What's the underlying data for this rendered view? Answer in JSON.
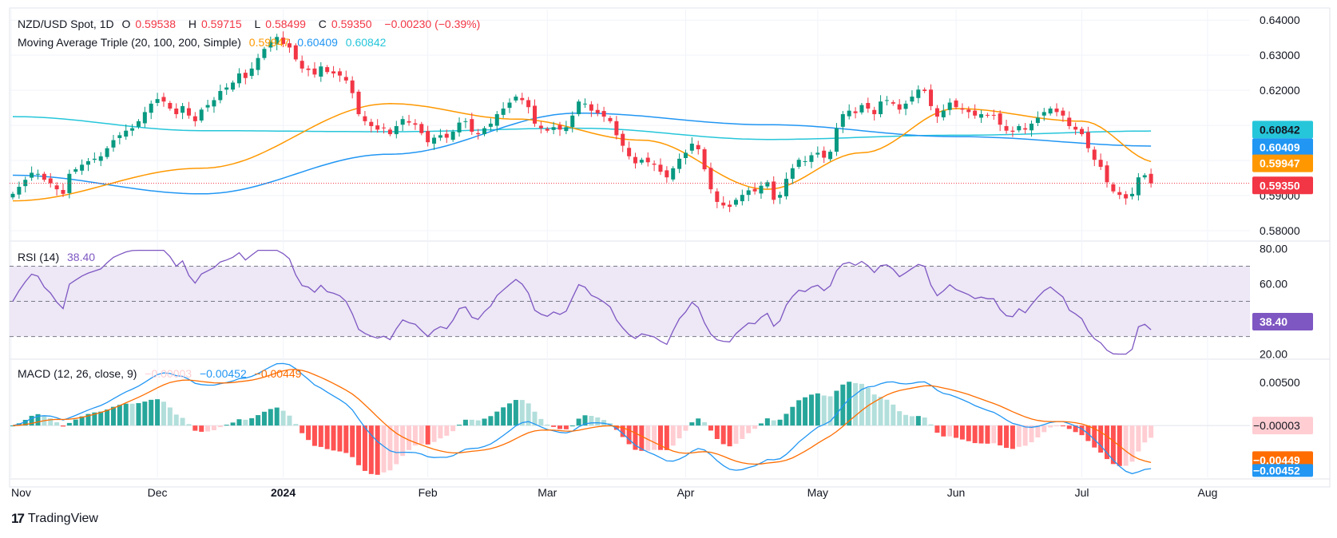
{
  "header": {
    "symbol": "NZD/USD Spot, 1D",
    "open_label": "O",
    "open": "0.59538",
    "high_label": "H",
    "high": "0.59715",
    "low_label": "L",
    "low": "0.58499",
    "close_label": "C",
    "close": "0.59350",
    "change": "−0.00230 (−0.39%)"
  },
  "ma_header": {
    "label": "Moving Average Triple (20, 100, 200, Simple)",
    "ma20": "0.59947",
    "ma100": "0.60409",
    "ma200": "0.60842"
  },
  "rsi_header": {
    "label": "RSI (14)",
    "value": "38.40"
  },
  "macd_header": {
    "label": "MACD (12, 26, close, 9)",
    "hist": "−0.00003",
    "macd": "−0.00452",
    "signal": "−0.00449"
  },
  "footer": {
    "brand": "TradingView",
    "logo": "tv-logo-icon"
  },
  "colors": {
    "up": "#089981",
    "down": "#f23645",
    "ma20": "#ff9800",
    "ma100": "#2196f3",
    "ma200": "#26c6da",
    "rsi": "#7e57c2",
    "rsi_band": "#ede7f6",
    "macd": "#2196f3",
    "signal": "#ff6d00",
    "hist_up_strong": "#26a69a",
    "hist_up_weak": "#b2dfdb",
    "hist_dn_strong": "#ff5252",
    "hist_dn_weak": "#ffcdd2"
  },
  "chart_data": [
    {
      "type": "candlestick",
      "title": "NZD/USD Spot, 1D",
      "x_ticks": [
        "Nov",
        "Dec",
        "2024",
        "Feb",
        "Mar",
        "Apr",
        "May",
        "Jun",
        "Jul",
        "Aug"
      ],
      "y_ticks": [
        "0.64000",
        "0.63000",
        "0.62000",
        "0.61000",
        "0.60000",
        "0.59000",
        "0.58000"
      ],
      "ylim": [
        0.5775,
        0.643
      ],
      "price_labels": {
        "ma200": "0.60842",
        "ma100": "0.60409",
        "ma20": "0.59947",
        "close": "0.59350"
      },
      "closes": [
        0.5905,
        0.5925,
        0.5945,
        0.5965,
        0.5962,
        0.5945,
        0.5935,
        0.5918,
        0.5905,
        0.5962,
        0.5975,
        0.5988,
        0.5998,
        0.6005,
        0.6012,
        0.6035,
        0.6058,
        0.6072,
        0.6085,
        0.6092,
        0.6112,
        0.6138,
        0.6162,
        0.6175,
        0.6168,
        0.6148,
        0.6132,
        0.6155,
        0.6128,
        0.6112,
        0.6145,
        0.6158,
        0.6172,
        0.6198,
        0.6208,
        0.6222,
        0.6248,
        0.6235,
        0.6262,
        0.6292,
        0.6318,
        0.6338,
        0.6352,
        0.6332,
        0.6322,
        0.6288,
        0.6262,
        0.6258,
        0.6245,
        0.6268,
        0.6252,
        0.6248,
        0.6242,
        0.6228,
        0.6192,
        0.6132,
        0.6112,
        0.6098,
        0.6088,
        0.6092,
        0.6075,
        0.6098,
        0.6118,
        0.6108,
        0.6102,
        0.6078,
        0.6052,
        0.6065,
        0.6072,
        0.6065,
        0.6082,
        0.6108,
        0.6112,
        0.6082,
        0.6075,
        0.6092,
        0.6105,
        0.6132,
        0.6148,
        0.6165,
        0.6182,
        0.6172,
        0.6152,
        0.6105,
        0.6092,
        0.6085,
        0.6095,
        0.6088,
        0.6095,
        0.6128,
        0.6168,
        0.6162,
        0.6142,
        0.6135,
        0.6125,
        0.6112,
        0.6072,
        0.6042,
        0.6012,
        0.5992,
        0.6002,
        0.5995,
        0.5988,
        0.5968,
        0.5952,
        0.5978,
        0.6005,
        0.6022,
        0.6048,
        0.6032,
        0.5975,
        0.5918,
        0.5882,
        0.5872,
        0.5868,
        0.5888,
        0.5902,
        0.5915,
        0.5912,
        0.5928,
        0.5938,
        0.5888,
        0.5902,
        0.5948,
        0.5978,
        0.6002,
        0.5998,
        0.6015,
        0.6022,
        0.6008,
        0.6025,
        0.6092,
        0.6132,
        0.6142,
        0.6135,
        0.6158,
        0.6148,
        0.6132,
        0.6168,
        0.6172,
        0.6162,
        0.6145,
        0.6162,
        0.6182,
        0.6202,
        0.6198,
        0.6155,
        0.6125,
        0.6142,
        0.6165,
        0.6152,
        0.6145,
        0.6138,
        0.6128,
        0.6132,
        0.6128,
        0.6128,
        0.6102,
        0.6085,
        0.6082,
        0.6098,
        0.6088,
        0.6105,
        0.6122,
        0.6138,
        0.6148,
        0.6138,
        0.6128,
        0.6098,
        0.6088,
        0.6075,
        0.6035,
        0.6002,
        0.5982,
        0.5938,
        0.5912,
        0.5902,
        0.5892,
        0.5905,
        0.5952,
        0.5958,
        0.5935
      ],
      "ma20_sample": [
        [
          0,
          0.5885
        ],
        [
          30,
          0.5978
        ],
        [
          60,
          0.6162
        ],
        [
          80,
          0.6118
        ],
        [
          100,
          0.6058
        ],
        [
          120,
          0.5918
        ],
        [
          135,
          0.6022
        ],
        [
          150,
          0.6148
        ],
        [
          170,
          0.6112
        ],
        [
          182,
          0.5995
        ]
      ],
      "ma100_sample": [
        [
          0,
          0.5958
        ],
        [
          30,
          0.5905
        ],
        [
          60,
          0.6018
        ],
        [
          90,
          0.6135
        ],
        [
          120,
          0.6102
        ],
        [
          150,
          0.6068
        ],
        [
          182,
          0.6041
        ]
      ],
      "ma200_sample": [
        [
          0,
          0.6125
        ],
        [
          30,
          0.6085
        ],
        [
          60,
          0.6082
        ],
        [
          90,
          0.6092
        ],
        [
          120,
          0.606
        ],
        [
          150,
          0.6072
        ],
        [
          182,
          0.6084
        ]
      ]
    },
    {
      "type": "line",
      "title": "RSI (14)",
      "y_ticks": [
        "80.00",
        "60.00",
        "20.00"
      ],
      "ylim": [
        18,
        82
      ],
      "bands": [
        30,
        50,
        70
      ],
      "last_value": "38.40"
    },
    {
      "type": "bar",
      "title": "MACD (12, 26, close, 9)",
      "y_ticks": [
        "0.00500",
        "−0.00003",
        "−0.00449",
        "−0.00452"
      ],
      "ylim": [
        -0.006,
        0.0075
      ],
      "last_values": {
        "hist": "−0.00003",
        "macd": "−0.00452",
        "signal": "−0.00449"
      }
    }
  ]
}
